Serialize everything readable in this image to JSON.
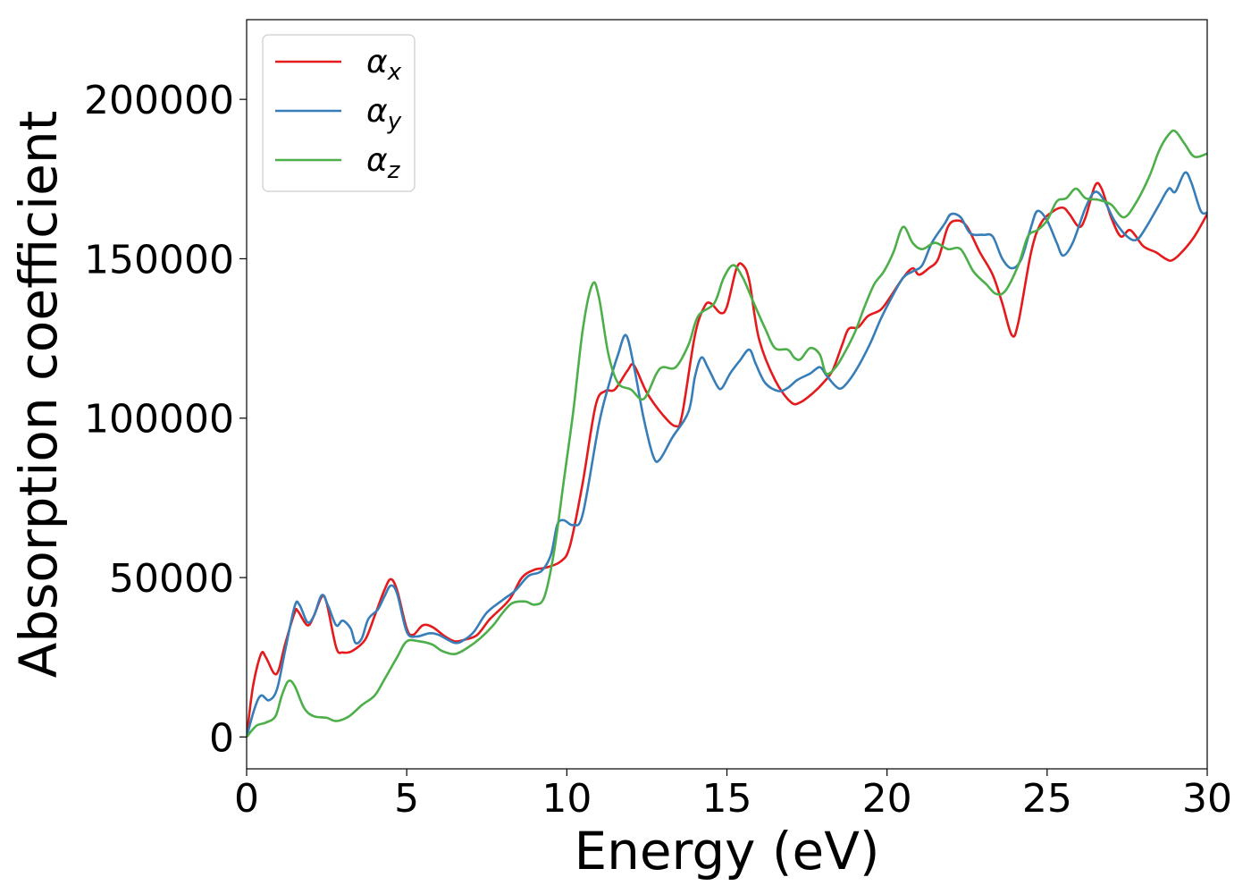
{
  "chart_data": {
    "type": "line",
    "title": "",
    "xlabel": "Energy (eV)",
    "ylabel": "Absorption coefficient",
    "xlim": [
      0,
      30
    ],
    "ylim": [
      -10000,
      225000
    ],
    "xticks": [
      0,
      5,
      10,
      15,
      20,
      25,
      30
    ],
    "yticks": [
      0,
      50000,
      100000,
      150000,
      200000
    ],
    "grid": false,
    "legend_position": "top-left",
    "series": [
      {
        "name": "αx",
        "legend_symbol": "α",
        "legend_subscript": "x",
        "color": "#e41a1c",
        "points": [
          [
            0,
            0
          ],
          [
            0.2,
            16000
          ],
          [
            0.45,
            26000
          ],
          [
            0.6,
            25000
          ],
          [
            0.85,
            20000
          ],
          [
            1.0,
            21000
          ],
          [
            1.2,
            29000
          ],
          [
            1.5,
            39000
          ],
          [
            1.6,
            39500
          ],
          [
            1.9,
            35000
          ],
          [
            2.1,
            38000
          ],
          [
            2.35,
            44000
          ],
          [
            2.5,
            42000
          ],
          [
            2.8,
            28000
          ],
          [
            3.0,
            26500
          ],
          [
            3.3,
            27000
          ],
          [
            3.7,
            30500
          ],
          [
            4.0,
            38000
          ],
          [
            4.3,
            46000
          ],
          [
            4.5,
            49500
          ],
          [
            4.7,
            46000
          ],
          [
            5.0,
            34000
          ],
          [
            5.2,
            32000
          ],
          [
            5.5,
            35000
          ],
          [
            5.8,
            34500
          ],
          [
            6.2,
            31500
          ],
          [
            6.5,
            30000
          ],
          [
            6.8,
            30500
          ],
          [
            7.2,
            32000
          ],
          [
            7.6,
            37000
          ],
          [
            8.2,
            43000
          ],
          [
            8.6,
            50000
          ],
          [
            9.0,
            52500
          ],
          [
            9.3,
            53000
          ],
          [
            9.8,
            55000
          ],
          [
            10.1,
            60000
          ],
          [
            10.5,
            80000
          ],
          [
            10.9,
            104000
          ],
          [
            11.2,
            108500
          ],
          [
            11.5,
            109000
          ],
          [
            11.9,
            115000
          ],
          [
            12.1,
            116500
          ],
          [
            12.5,
            108000
          ],
          [
            13.0,
            101000
          ],
          [
            13.4,
            97500
          ],
          [
            13.6,
            101000
          ],
          [
            14.0,
            126000
          ],
          [
            14.3,
            135000
          ],
          [
            14.5,
            136000
          ],
          [
            14.8,
            133000
          ],
          [
            15.0,
            135000
          ],
          [
            15.3,
            147000
          ],
          [
            15.5,
            148000
          ],
          [
            15.7,
            143000
          ],
          [
            16.0,
            125000
          ],
          [
            16.5,
            112000
          ],
          [
            17.0,
            105000
          ],
          [
            17.3,
            105000
          ],
          [
            17.7,
            108000
          ],
          [
            18.0,
            111000
          ],
          [
            18.3,
            115000
          ],
          [
            18.6,
            123000
          ],
          [
            18.8,
            128000
          ],
          [
            19.1,
            128500
          ],
          [
            19.4,
            132000
          ],
          [
            19.8,
            134000
          ],
          [
            20.1,
            138000
          ],
          [
            20.5,
            144000
          ],
          [
            20.8,
            147000
          ],
          [
            21.0,
            145000
          ],
          [
            21.3,
            147000
          ],
          [
            21.6,
            150000
          ],
          [
            21.9,
            160000
          ],
          [
            22.2,
            162000
          ],
          [
            22.5,
            160000
          ],
          [
            22.9,
            152000
          ],
          [
            23.3,
            145000
          ],
          [
            23.6,
            136000
          ],
          [
            23.9,
            126000
          ],
          [
            24.1,
            130000
          ],
          [
            24.5,
            152000
          ],
          [
            24.8,
            161000
          ],
          [
            25.2,
            165000
          ],
          [
            25.5,
            166000
          ],
          [
            25.7,
            164000
          ],
          [
            26.0,
            160000
          ],
          [
            26.2,
            163000
          ],
          [
            26.5,
            173000
          ],
          [
            26.7,
            172000
          ],
          [
            27.0,
            163000
          ],
          [
            27.3,
            157000
          ],
          [
            27.6,
            159000
          ],
          [
            28.0,
            154000
          ],
          [
            28.4,
            152000
          ],
          [
            28.7,
            150000
          ],
          [
            28.9,
            149500
          ],
          [
            29.2,
            152000
          ],
          [
            29.6,
            157000
          ],
          [
            30.0,
            164000
          ]
        ]
      },
      {
        "name": "αy",
        "legend_symbol": "α",
        "legend_subscript": "y",
        "color": "#377eb8",
        "points": [
          [
            0,
            0
          ],
          [
            0.25,
            9000
          ],
          [
            0.45,
            13000
          ],
          [
            0.7,
            11500
          ],
          [
            0.95,
            15000
          ],
          [
            1.2,
            27000
          ],
          [
            1.5,
            41000
          ],
          [
            1.65,
            41500
          ],
          [
            1.9,
            36000
          ],
          [
            2.1,
            38000
          ],
          [
            2.35,
            44500
          ],
          [
            2.55,
            41000
          ],
          [
            2.8,
            35000
          ],
          [
            3.0,
            36500
          ],
          [
            3.25,
            34000
          ],
          [
            3.4,
            29500
          ],
          [
            3.6,
            31000
          ],
          [
            3.8,
            37000
          ],
          [
            4.1,
            40000
          ],
          [
            4.3,
            44000
          ],
          [
            4.5,
            47500
          ],
          [
            4.7,
            45000
          ],
          [
            5.0,
            33000
          ],
          [
            5.3,
            31500
          ],
          [
            5.7,
            32500
          ],
          [
            6.0,
            32000
          ],
          [
            6.5,
            29500
          ],
          [
            6.8,
            30500
          ],
          [
            7.1,
            33000
          ],
          [
            7.5,
            39000
          ],
          [
            8.0,
            43000
          ],
          [
            8.4,
            46000
          ],
          [
            8.8,
            50500
          ],
          [
            9.2,
            52000
          ],
          [
            9.5,
            57000
          ],
          [
            9.7,
            66500
          ],
          [
            9.9,
            68000
          ],
          [
            10.2,
            66500
          ],
          [
            10.5,
            70000
          ],
          [
            11.0,
            98000
          ],
          [
            11.3,
            110000
          ],
          [
            11.6,
            120000
          ],
          [
            11.85,
            126000
          ],
          [
            12.1,
            116000
          ],
          [
            12.4,
            100000
          ],
          [
            12.7,
            88000
          ],
          [
            12.9,
            87000
          ],
          [
            13.3,
            94000
          ],
          [
            13.8,
            102000
          ],
          [
            14.0,
            113000
          ],
          [
            14.2,
            119000
          ],
          [
            14.4,
            116000
          ],
          [
            14.7,
            110000
          ],
          [
            14.85,
            109500
          ],
          [
            15.1,
            114000
          ],
          [
            15.4,
            118000
          ],
          [
            15.7,
            121500
          ],
          [
            15.9,
            117000
          ],
          [
            16.2,
            111000
          ],
          [
            16.6,
            108500
          ],
          [
            16.9,
            109500
          ],
          [
            17.2,
            112000
          ],
          [
            17.6,
            114000
          ],
          [
            17.9,
            116000
          ],
          [
            18.1,
            113500
          ],
          [
            18.4,
            110000
          ],
          [
            18.6,
            109500
          ],
          [
            18.9,
            113000
          ],
          [
            19.2,
            118000
          ],
          [
            19.5,
            124000
          ],
          [
            19.8,
            131000
          ],
          [
            20.1,
            137000
          ],
          [
            20.5,
            144000
          ],
          [
            20.8,
            146000
          ],
          [
            21.1,
            148000
          ],
          [
            21.4,
            155000
          ],
          [
            21.8,
            161000
          ],
          [
            22.0,
            164000
          ],
          [
            22.3,
            163000
          ],
          [
            22.6,
            158000
          ],
          [
            23.0,
            157500
          ],
          [
            23.3,
            157000
          ],
          [
            23.6,
            150000
          ],
          [
            23.9,
            147000
          ],
          [
            24.2,
            150000
          ],
          [
            24.5,
            160000
          ],
          [
            24.7,
            165000
          ],
          [
            25.0,
            162000
          ],
          [
            25.3,
            155000
          ],
          [
            25.5,
            151000
          ],
          [
            25.8,
            155000
          ],
          [
            26.2,
            166000
          ],
          [
            26.5,
            171000
          ],
          [
            26.8,
            168000
          ],
          [
            27.1,
            162000
          ],
          [
            27.5,
            157000
          ],
          [
            27.8,
            156000
          ],
          [
            28.1,
            160000
          ],
          [
            28.5,
            167000
          ],
          [
            28.8,
            172000
          ],
          [
            29.0,
            171000
          ],
          [
            29.3,
            177000
          ],
          [
            29.5,
            174000
          ],
          [
            29.8,
            165000
          ],
          [
            30.0,
            164500
          ]
        ]
      },
      {
        "name": "αz",
        "legend_symbol": "α",
        "legend_subscript": "z",
        "color": "#4daf4a",
        "points": [
          [
            0,
            0
          ],
          [
            0.3,
            3500
          ],
          [
            0.6,
            4500
          ],
          [
            0.9,
            6500
          ],
          [
            1.1,
            13000
          ],
          [
            1.3,
            17500
          ],
          [
            1.5,
            16000
          ],
          [
            1.8,
            9000
          ],
          [
            2.1,
            6500
          ],
          [
            2.5,
            6000
          ],
          [
            2.8,
            5000
          ],
          [
            3.2,
            6500
          ],
          [
            3.6,
            10000
          ],
          [
            4.0,
            13000
          ],
          [
            4.3,
            18000
          ],
          [
            4.7,
            25000
          ],
          [
            5.0,
            30000
          ],
          [
            5.4,
            30000
          ],
          [
            5.8,
            29000
          ],
          [
            6.1,
            27000
          ],
          [
            6.5,
            26000
          ],
          [
            6.9,
            28000
          ],
          [
            7.3,
            31000
          ],
          [
            7.7,
            35000
          ],
          [
            8.0,
            39000
          ],
          [
            8.3,
            42000
          ],
          [
            8.7,
            42500
          ],
          [
            9.0,
            41500
          ],
          [
            9.3,
            44000
          ],
          [
            9.6,
            58000
          ],
          [
            9.9,
            80000
          ],
          [
            10.2,
            102000
          ],
          [
            10.5,
            128000
          ],
          [
            10.8,
            142000
          ],
          [
            11.0,
            138000
          ],
          [
            11.3,
            120000
          ],
          [
            11.6,
            111000
          ],
          [
            12.0,
            109000
          ],
          [
            12.4,
            106000
          ],
          [
            12.8,
            114000
          ],
          [
            13.0,
            116000
          ],
          [
            13.4,
            116000
          ],
          [
            13.8,
            123000
          ],
          [
            14.1,
            132000
          ],
          [
            14.6,
            136000
          ],
          [
            14.9,
            144000
          ],
          [
            15.2,
            148000
          ],
          [
            15.5,
            144000
          ],
          [
            15.8,
            137000
          ],
          [
            16.2,
            128000
          ],
          [
            16.5,
            122000
          ],
          [
            16.9,
            121500
          ],
          [
            17.1,
            119000
          ],
          [
            17.3,
            118500
          ],
          [
            17.6,
            122000
          ],
          [
            17.9,
            120000
          ],
          [
            18.1,
            114000
          ],
          [
            18.4,
            116000
          ],
          [
            18.7,
            121000
          ],
          [
            19.0,
            127000
          ],
          [
            19.3,
            135000
          ],
          [
            19.6,
            142000
          ],
          [
            19.9,
            146000
          ],
          [
            20.2,
            152000
          ],
          [
            20.5,
            160000
          ],
          [
            20.8,
            155000
          ],
          [
            21.1,
            153000
          ],
          [
            21.5,
            155000
          ],
          [
            21.9,
            153000
          ],
          [
            22.3,
            153000
          ],
          [
            22.7,
            146000
          ],
          [
            23.1,
            142000
          ],
          [
            23.4,
            139000
          ],
          [
            23.7,
            140000
          ],
          [
            24.1,
            148000
          ],
          [
            24.4,
            157000
          ],
          [
            24.7,
            159000
          ],
          [
            25.0,
            162000
          ],
          [
            25.3,
            168000
          ],
          [
            25.6,
            169000
          ],
          [
            25.9,
            172000
          ],
          [
            26.2,
            169000
          ],
          [
            26.6,
            168500
          ],
          [
            27.0,
            167000
          ],
          [
            27.4,
            163000
          ],
          [
            27.8,
            168000
          ],
          [
            28.2,
            176000
          ],
          [
            28.5,
            184000
          ],
          [
            28.8,
            189000
          ],
          [
            29.0,
            190000
          ],
          [
            29.3,
            186000
          ],
          [
            29.6,
            182000
          ],
          [
            30.0,
            183000
          ]
        ]
      }
    ]
  }
}
